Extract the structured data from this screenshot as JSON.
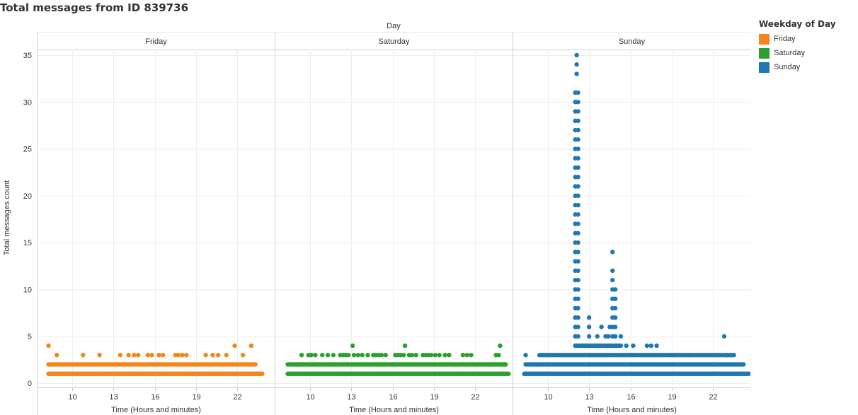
{
  "page": {
    "title": "Total messages from ID 839736"
  },
  "legend": {
    "title": "Weekday of Day",
    "items": [
      {
        "label": "Friday",
        "color": "#f58518"
      },
      {
        "label": "Saturday",
        "color": "#2ca02c"
      },
      {
        "label": "Sunday",
        "color": "#1f77b4"
      }
    ]
  },
  "chart_data": {
    "type": "scatter",
    "title": "Total messages from ID 839736",
    "column_header": "Day",
    "ylabel": "Total messages count",
    "xlabel": "Time (Hours and minutes)",
    "ylim": [
      0,
      37
    ],
    "xlim": [
      7.5,
      24.7
    ],
    "yticks": [
      0,
      5,
      10,
      15,
      20,
      25,
      30,
      35
    ],
    "xticks": [
      10,
      13,
      16,
      19,
      22
    ],
    "grid": true,
    "legend_position": "right",
    "panels": [
      {
        "name": "Friday",
        "color": "#f58518",
        "bands": [
          {
            "y": 1,
            "from": 8.3,
            "to": 23.8,
            "step": 0.1
          },
          {
            "y": 2,
            "from": 8.3,
            "to": 23.3,
            "step": 0.15
          }
        ],
        "points": [
          [
            8.3,
            4
          ],
          [
            21.8,
            4
          ],
          [
            23.0,
            4
          ],
          [
            8.9,
            3
          ],
          [
            10.8,
            3
          ],
          [
            12.0,
            3
          ],
          [
            13.5,
            3
          ],
          [
            14.1,
            3
          ],
          [
            14.5,
            3
          ],
          [
            14.8,
            3
          ],
          [
            15.5,
            3
          ],
          [
            15.8,
            3
          ],
          [
            16.3,
            3
          ],
          [
            16.6,
            3
          ],
          [
            17.5,
            3
          ],
          [
            17.7,
            3
          ],
          [
            18.0,
            3
          ],
          [
            18.3,
            3
          ],
          [
            19.7,
            3
          ],
          [
            20.2,
            3
          ],
          [
            20.6,
            3
          ],
          [
            21.2,
            3
          ],
          [
            22.4,
            3
          ]
        ]
      },
      {
        "name": "Saturday",
        "color": "#2ca02c",
        "bands": [
          {
            "y": 1,
            "from": 8.4,
            "to": 24.4,
            "step": 0.1
          },
          {
            "y": 2,
            "from": 8.4,
            "to": 24.2,
            "step": 0.1
          }
        ],
        "points": [
          [
            13.1,
            4
          ],
          [
            16.9,
            4
          ],
          [
            23.8,
            4
          ],
          [
            9.4,
            3
          ],
          [
            9.9,
            3
          ],
          [
            10.1,
            3
          ],
          [
            10.4,
            3
          ],
          [
            10.9,
            3
          ],
          [
            11.3,
            3
          ],
          [
            11.7,
            3
          ],
          [
            12.2,
            3
          ],
          [
            12.4,
            3
          ],
          [
            12.6,
            3
          ],
          [
            12.8,
            3
          ],
          [
            13.2,
            3
          ],
          [
            13.5,
            3
          ],
          [
            13.8,
            3
          ],
          [
            14.2,
            3
          ],
          [
            14.6,
            3
          ],
          [
            14.8,
            3
          ],
          [
            15.0,
            3
          ],
          [
            15.2,
            3
          ],
          [
            15.5,
            3
          ],
          [
            16.2,
            3
          ],
          [
            16.4,
            3
          ],
          [
            16.6,
            3
          ],
          [
            16.8,
            3
          ],
          [
            17.2,
            3
          ],
          [
            17.4,
            3
          ],
          [
            17.7,
            3
          ],
          [
            18.2,
            3
          ],
          [
            18.4,
            3
          ],
          [
            18.6,
            3
          ],
          [
            18.8,
            3
          ],
          [
            19.1,
            3
          ],
          [
            19.4,
            3
          ],
          [
            19.8,
            3
          ],
          [
            20.1,
            3
          ],
          [
            21.1,
            3
          ],
          [
            21.4,
            3
          ],
          [
            21.7,
            3
          ],
          [
            23.5,
            3
          ],
          [
            23.7,
            3
          ]
        ]
      },
      {
        "name": "Sunday",
        "color": "#1f77b4",
        "bands": [
          {
            "y": 1,
            "from": 8.3,
            "to": 24.6,
            "step": 0.1
          },
          {
            "y": 2,
            "from": 8.4,
            "to": 24.2,
            "step": 0.1
          },
          {
            "y": 3,
            "from": 9.4,
            "to": 23.6,
            "step": 0.15
          },
          {
            "y": 4,
            "from": 12.0,
            "to": 15.3,
            "step": 0.1
          }
        ],
        "columns": [
          {
            "x": 12.0,
            "from": 5,
            "to": 31
          },
          {
            "x": 12.2,
            "from": 5,
            "to": 31
          },
          {
            "x": 14.7,
            "from": 5,
            "to": 10
          },
          {
            "x": 14.9,
            "from": 5,
            "to": 10
          }
        ],
        "points": [
          [
            12.1,
            33
          ],
          [
            12.1,
            34
          ],
          [
            12.1,
            35
          ],
          [
            14.7,
            11
          ],
          [
            14.7,
            12
          ],
          [
            14.7,
            14
          ],
          [
            15.3,
            5
          ],
          [
            13.0,
            5
          ],
          [
            13.0,
            6
          ],
          [
            13.0,
            7
          ],
          [
            13.6,
            5
          ],
          [
            13.9,
            6
          ],
          [
            14.2,
            5
          ],
          [
            14.5,
            6
          ],
          [
            14.4,
            5
          ],
          [
            12.8,
            4
          ],
          [
            16.2,
            4
          ],
          [
            17.2,
            4
          ],
          [
            17.5,
            4
          ],
          [
            17.9,
            4
          ],
          [
            13.4,
            4
          ],
          [
            15.7,
            4
          ],
          [
            8.4,
            3
          ],
          [
            22.8,
            5
          ],
          [
            23.0,
            3
          ]
        ]
      }
    ]
  }
}
